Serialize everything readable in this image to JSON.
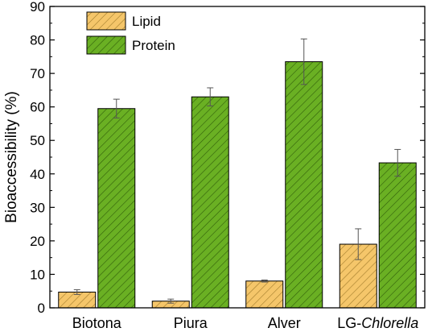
{
  "chart_data": {
    "type": "bar",
    "categories": [
      "Biotona",
      "Piura",
      "Alver",
      "LG-Chlorella"
    ],
    "category_parts": [
      {
        "plain": "Biotona",
        "italic": ""
      },
      {
        "plain": "Piura",
        "italic": ""
      },
      {
        "plain": "Alver",
        "italic": ""
      },
      {
        "plain": "LG-",
        "italic": "Chlorella"
      }
    ],
    "series": [
      {
        "name": "Lipid",
        "values": [
          4.7,
          2.0,
          8.0,
          19.0
        ],
        "errors": [
          0.7,
          0.6,
          0.3,
          4.6
        ],
        "color": "#F5C66A",
        "hatch_color": "#A07A2A"
      },
      {
        "name": "Protein",
        "values": [
          59.5,
          63.0,
          73.5,
          43.3
        ],
        "errors": [
          2.8,
          2.7,
          6.8,
          4.0
        ],
        "color": "#6AB023",
        "hatch_color": "#2F5C0A"
      }
    ],
    "ylabel": "Bioaccessibility (%)",
    "xlabel": "",
    "ylim": [
      0,
      90
    ],
    "yticks": [
      0,
      10,
      20,
      30,
      40,
      50,
      60,
      70,
      80,
      90
    ],
    "legend_position": "top-left",
    "grid": false
  }
}
